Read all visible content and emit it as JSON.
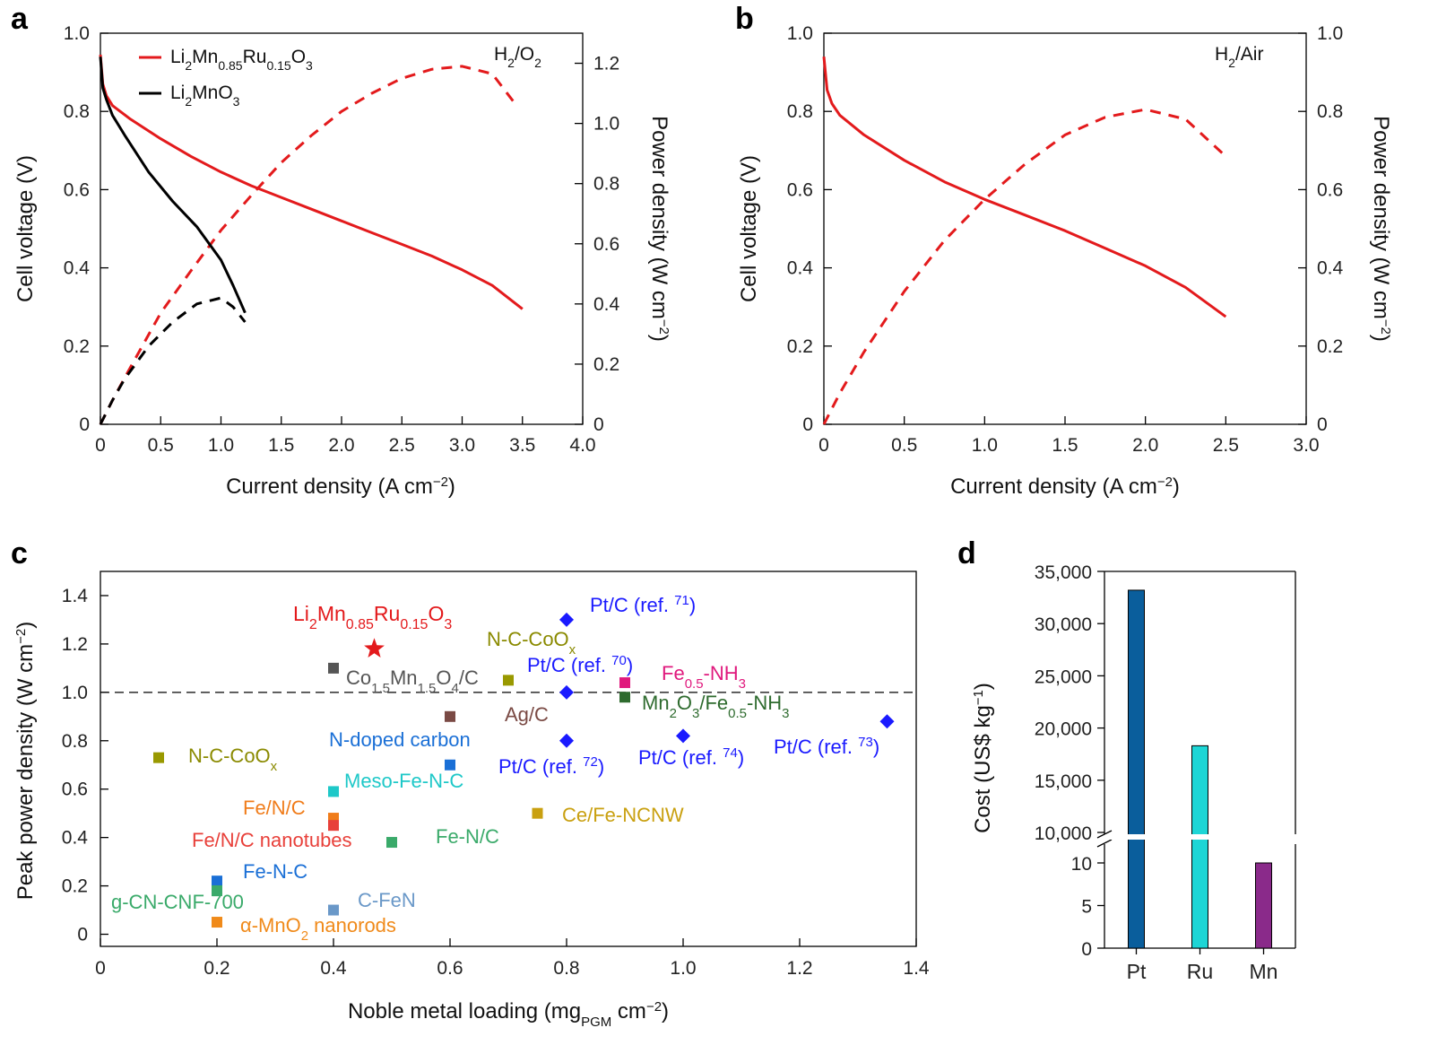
{
  "colors": {
    "red": "#e31a1c",
    "black": "#000000"
  },
  "panels": {
    "a": {
      "letter": "a",
      "annotation": "H2/O2",
      "annotation_parts": {
        "pre": "H",
        "sub1": "2",
        "mid": "/O",
        "sub2": "2"
      },
      "xlabel": "Current density (A cm−2)",
      "xlabel_parts": {
        "pre": "Current density (A cm",
        "sup": "−2",
        "post": ")"
      },
      "ylabel_left": "Cell voltage (V)",
      "ylabel_right": "Power density (W cm−2)",
      "ylabel_right_parts": {
        "pre": "Power density (W cm",
        "sup": "−2",
        "post": ")"
      },
      "legend": [
        {
          "name": "Li2Mn0.85Ru0.15O3",
          "color": "#e31a1c"
        },
        {
          "name": "Li2MnO3",
          "color": "#000000"
        }
      ]
    },
    "b": {
      "letter": "b",
      "annotation": "H2/Air",
      "annotation_parts": {
        "pre": "H",
        "sub1": "2",
        "post": "/Air"
      },
      "xlabel": "Current density (A cm−2)",
      "ylabel_left": "Cell voltage (V)",
      "ylabel_right": "Power density (W cm−2)"
    },
    "c": {
      "letter": "c",
      "xlabel": "Noble metal loading (mgPGM cm−2)",
      "xlabel_parts": {
        "pre": "Noble metal loading (mg",
        "sub": "PGM",
        "mid": " cm",
        "sup": "−2",
        "post": ")"
      },
      "ylabel": "Peak power density (W cm−2)",
      "ylabel_parts": {
        "pre": "Peak power density (W cm",
        "sup": "−2",
        "post": ")"
      }
    },
    "d": {
      "letter": "d",
      "ylabel": "Cost (US$ kg−1)",
      "ylabel_parts": {
        "pre": "Cost (US$ kg",
        "sup": "−1",
        "post": ")"
      }
    }
  },
  "chart_data": [
    {
      "panel": "a",
      "type": "line",
      "xlabel": "Current density (A cm−2)",
      "ylabel": "Cell voltage (V)",
      "y2label": "Power density (W cm−2)",
      "xlim": [
        0,
        4.0
      ],
      "ylim": [
        0,
        1.0
      ],
      "y2lim": [
        0,
        1.3
      ],
      "xticks": [
        "0",
        "0.5",
        "1.0",
        "1.5",
        "2.0",
        "2.5",
        "3.0",
        "3.5",
        "4.0"
      ],
      "yticks": [
        "0",
        "0.2",
        "0.4",
        "0.6",
        "0.8",
        "1.0"
      ],
      "y2ticks": [
        "0",
        "0.2",
        "0.4",
        "0.6",
        "0.8",
        "1.0",
        "1.2"
      ],
      "series": [
        {
          "name": "Li2Mn0.85Ru0.15O3",
          "axis": "left",
          "style": "solid",
          "color": "#e31a1c",
          "x": [
            0,
            0.02,
            0.05,
            0.1,
            0.25,
            0.5,
            0.75,
            1.0,
            1.25,
            1.5,
            1.75,
            2.0,
            2.25,
            2.5,
            2.75,
            3.0,
            3.25,
            3.5
          ],
          "y": [
            0.945,
            0.87,
            0.84,
            0.815,
            0.78,
            0.73,
            0.685,
            0.645,
            0.61,
            0.58,
            0.55,
            0.52,
            0.49,
            0.46,
            0.43,
            0.395,
            0.355,
            0.295
          ]
        },
        {
          "name": "Li2Mn0.85Ru0.15O3",
          "axis": "right",
          "style": "dashed",
          "color": "#e31a1c",
          "x": [
            0,
            0.1,
            0.25,
            0.5,
            0.75,
            1.0,
            1.25,
            1.5,
            1.75,
            2.0,
            2.25,
            2.5,
            2.75,
            3.0,
            3.25,
            3.45
          ],
          "y": [
            0,
            0.08,
            0.19,
            0.37,
            0.51,
            0.645,
            0.76,
            0.87,
            0.96,
            1.04,
            1.1,
            1.15,
            1.18,
            1.19,
            1.165,
            1.06
          ]
        },
        {
          "name": "Li2MnO3",
          "axis": "left",
          "style": "solid",
          "color": "#000000",
          "x": [
            0,
            0.02,
            0.05,
            0.1,
            0.2,
            0.4,
            0.6,
            0.8,
            1.0,
            1.1,
            1.2
          ],
          "y": [
            0.94,
            0.86,
            0.83,
            0.79,
            0.74,
            0.645,
            0.57,
            0.505,
            0.42,
            0.355,
            0.285
          ]
        },
        {
          "name": "Li2MnO3",
          "axis": "right",
          "style": "dashed",
          "color": "#000000",
          "x": [
            0,
            0.1,
            0.2,
            0.4,
            0.6,
            0.8,
            0.9,
            1.0,
            1.1,
            1.2
          ],
          "y": [
            0,
            0.08,
            0.15,
            0.26,
            0.34,
            0.4,
            0.41,
            0.42,
            0.39,
            0.34
          ]
        }
      ],
      "legend": [
        "Li2Mn0.85Ru0.15O3",
        "Li2MnO3"
      ],
      "annotation": "H2/O2"
    },
    {
      "panel": "b",
      "type": "line",
      "xlabel": "Current density (A cm−2)",
      "ylabel": "Cell voltage (V)",
      "y2label": "Power density (W cm−2)",
      "xlim": [
        0,
        3.0
      ],
      "ylim": [
        0,
        1.0
      ],
      "y2lim": [
        0,
        1.0
      ],
      "xticks": [
        "0",
        "0.5",
        "1.0",
        "1.5",
        "2.0",
        "2.5",
        "3.0"
      ],
      "yticks": [
        "0",
        "0.2",
        "0.4",
        "0.6",
        "0.8",
        "1.0"
      ],
      "y2ticks": [
        "0",
        "0.2",
        "0.4",
        "0.6",
        "0.8",
        "1.0"
      ],
      "series": [
        {
          "name": "Li2Mn0.85Ru0.15O3",
          "axis": "left",
          "style": "solid",
          "color": "#e31a1c",
          "x": [
            0,
            0.02,
            0.05,
            0.1,
            0.25,
            0.5,
            0.75,
            1.0,
            1.25,
            1.5,
            1.75,
            2.0,
            2.25,
            2.5
          ],
          "y": [
            0.94,
            0.855,
            0.82,
            0.79,
            0.74,
            0.675,
            0.62,
            0.575,
            0.535,
            0.495,
            0.45,
            0.405,
            0.35,
            0.275
          ]
        },
        {
          "name": "Li2Mn0.85Ru0.15O3",
          "axis": "right",
          "style": "dashed",
          "color": "#e31a1c",
          "x": [
            0,
            0.1,
            0.25,
            0.5,
            0.75,
            1.0,
            1.25,
            1.5,
            1.75,
            2.0,
            2.25,
            2.5
          ],
          "y": [
            0,
            0.08,
            0.185,
            0.34,
            0.47,
            0.575,
            0.665,
            0.74,
            0.785,
            0.805,
            0.78,
            0.685
          ]
        }
      ],
      "annotation": "H2/Air"
    },
    {
      "panel": "c",
      "type": "scatter",
      "xlabel": "Noble metal loading (mgPGM cm−2)",
      "ylabel": "Peak power density (W cm−2)",
      "xlim": [
        0,
        1.4
      ],
      "ylim": [
        -0.05,
        1.5
      ],
      "xticks": [
        "0",
        "0.2",
        "0.4",
        "0.6",
        "0.8",
        "1.0",
        "1.2",
        "1.4"
      ],
      "yticks": [
        "0",
        "0.2",
        "0.4",
        "0.6",
        "0.8",
        "1.0",
        "1.2",
        "1.4"
      ],
      "reference_line": 1.0,
      "points": [
        {
          "label": "Li2Mn0.85Ru0.15O3",
          "x": 0.47,
          "y": 1.18,
          "marker": "star",
          "color": "#e31a1c"
        },
        {
          "label": "Pt/C (ref. 71)",
          "x": 0.8,
          "y": 1.3,
          "marker": "diamond",
          "color": "#1a1aff"
        },
        {
          "label": "Pt/C (ref. 70)",
          "x": 0.8,
          "y": 1.0,
          "marker": "diamond",
          "color": "#1a1aff"
        },
        {
          "label": "Pt/C (ref. 72)",
          "x": 0.8,
          "y": 0.8,
          "marker": "diamond",
          "color": "#1a1aff"
        },
        {
          "label": "Pt/C (ref. 74)",
          "x": 1.0,
          "y": 0.82,
          "marker": "diamond",
          "color": "#1a1aff"
        },
        {
          "label": "Pt/C (ref. 73)",
          "x": 1.35,
          "y": 0.88,
          "marker": "diamond",
          "color": "#1a1aff"
        },
        {
          "label": "Co1.5Mn1.5O4/C",
          "x": 0.4,
          "y": 1.1,
          "marker": "square",
          "color": "#555555"
        },
        {
          "label": "N-C-CoOx",
          "x": 0.7,
          "y": 1.05,
          "marker": "square",
          "color": "#999900"
        },
        {
          "label": "Fe0.5-NH3",
          "x": 0.9,
          "y": 1.04,
          "marker": "square",
          "color": "#e0197d"
        },
        {
          "label": "Mn2O3/Fe0.5-NH3",
          "x": 0.9,
          "y": 0.98,
          "marker": "square",
          "color": "#2e6b2e"
        },
        {
          "label": "Ag/C",
          "x": 0.6,
          "y": 0.9,
          "marker": "square",
          "color": "#7a4a44"
        },
        {
          "label": "N-doped carbon",
          "x": 0.6,
          "y": 0.7,
          "marker": "square",
          "color": "#1a6fd6"
        },
        {
          "label": "N-C-CoOx",
          "x": 0.1,
          "y": 0.73,
          "marker": "square",
          "color": "#999900"
        },
        {
          "label": "Meso-Fe-N-C",
          "x": 0.4,
          "y": 0.59,
          "marker": "square",
          "color": "#1ec8c8"
        },
        {
          "label": "Fe/N/C",
          "x": 0.4,
          "y": 0.48,
          "marker": "square",
          "color": "#f07c1a"
        },
        {
          "label": "Fe/N/C nanotubes",
          "x": 0.4,
          "y": 0.45,
          "marker": "square",
          "color": "#e8403a"
        },
        {
          "label": "Ce/Fe-NCNW",
          "x": 0.75,
          "y": 0.5,
          "marker": "square",
          "color": "#c9a010"
        },
        {
          "label": "Fe-N/C",
          "x": 0.5,
          "y": 0.38,
          "marker": "square",
          "color": "#3aaa6a"
        },
        {
          "label": "Fe-N-C",
          "x": 0.2,
          "y": 0.22,
          "marker": "square",
          "color": "#1a6fd6"
        },
        {
          "label": "g-CN-CNF-700",
          "x": 0.2,
          "y": 0.18,
          "marker": "square",
          "color": "#3aaa6a"
        },
        {
          "label": "C-FeN",
          "x": 0.4,
          "y": 0.1,
          "marker": "square",
          "color": "#6a98c8"
        },
        {
          "label": "α-MnO2 nanorods",
          "x": 0.2,
          "y": 0.05,
          "marker": "square",
          "color": "#f08a1a"
        }
      ]
    },
    {
      "panel": "d",
      "type": "bar",
      "ylabel": "Cost (US$ kg−1)",
      "categories": [
        "Pt",
        "Ru",
        "Mn"
      ],
      "values": [
        33200,
        18300,
        10
      ],
      "colors": [
        "#0a5e9c",
        "#1ed6d6",
        "#8a2a8a"
      ],
      "y_axis_broken": true,
      "ylim_lower": [
        0,
        12
      ],
      "ylim_upper": [
        10000,
        35000
      ],
      "yticks_lower": [
        "0",
        "5",
        "10"
      ],
      "yticks_upper": [
        "10,000",
        "15,000",
        "20,000",
        "25,000",
        "30,000",
        "35,000"
      ]
    }
  ]
}
